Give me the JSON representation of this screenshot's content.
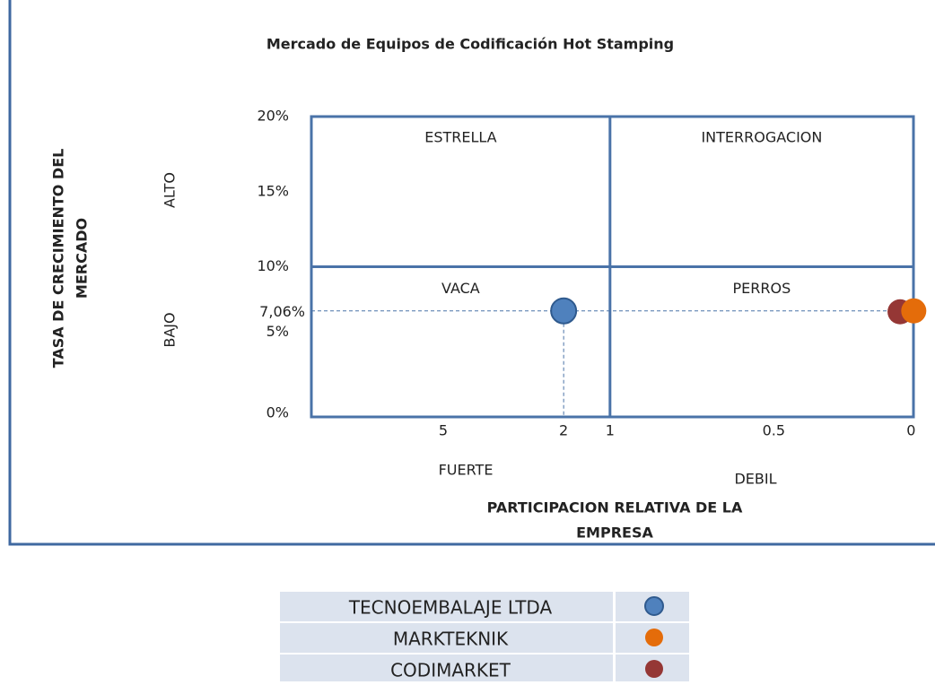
{
  "chart_data": {
    "type": "bcg",
    "title": "Mercado de Equipos de Codificación  Hot Stamping",
    "y_axis_label": [
      "TASA DE CRECIMIENTO DEL",
      "MERCADO"
    ],
    "x_axis_label": [
      "PARTICIPACION RELATIVA DE LA",
      "EMPRESA"
    ],
    "y_side_labels": [
      "ALTO",
      "BAJO"
    ],
    "x_side_labels": [
      "FUERTE",
      "DEBIL"
    ],
    "quadrants": [
      "ESTRELLA",
      "INTERROGACION",
      "VACA",
      "PERROS"
    ],
    "ylim": [
      0,
      20
    ],
    "yticks": [
      {
        "value": 20,
        "label": "20%"
      },
      {
        "value": 15,
        "label": "15%"
      },
      {
        "value": 10,
        "label": "10%"
      },
      {
        "value": 5,
        "label": "5%"
      },
      {
        "value": 0,
        "label": "0%"
      }
    ],
    "xticks": [
      5,
      2,
      1,
      0.5,
      0
    ],
    "x_divider": 1,
    "y_divider": 10,
    "reference": {
      "value": 7.06,
      "label": "7,06%"
    },
    "series": [
      {
        "name": "TECNOEMBALAJE LTDA",
        "color": "#4f81bd",
        "x": 2,
        "y": 7.06
      },
      {
        "name": "MARKTEKNIK",
        "color": "#e46c0a",
        "x": 0,
        "y": 7.06
      },
      {
        "name": "CODIMARKET",
        "color": "#953735",
        "x": 0.04,
        "y": 7.0
      }
    ]
  }
}
